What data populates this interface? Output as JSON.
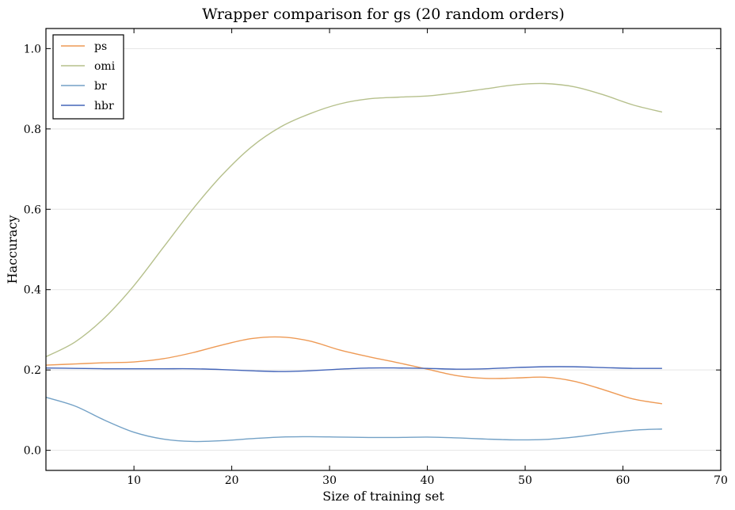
{
  "chart_data": {
    "type": "line",
    "title": "Wrapper comparison for gs (20 random orders)",
    "xlabel": "Size of training set",
    "ylabel": "Haccuracy",
    "xlim": [
      1,
      70
    ],
    "ylim": [
      -0.05,
      1.05
    ],
    "xticks": [
      10,
      20,
      30,
      40,
      50,
      60,
      70
    ],
    "yticks": [
      0.0,
      0.2,
      0.4,
      0.6,
      0.8,
      1.0
    ],
    "xtick_labels": [
      "10",
      "20",
      "30",
      "40",
      "50",
      "60",
      "70"
    ],
    "ytick_labels": [
      "0.0",
      "0.2",
      "0.4",
      "0.6",
      "0.8",
      "1.0"
    ],
    "grid": "horizontal",
    "legend_position": "top-left",
    "x": [
      1,
      4,
      7,
      10,
      13,
      16,
      19,
      22,
      25,
      28,
      31,
      34,
      37,
      40,
      43,
      46,
      49,
      52,
      55,
      58,
      61,
      64
    ],
    "series": [
      {
        "name": "ps",
        "color": "#ee9a55",
        "values": [
          0.212,
          0.215,
          0.218,
          0.22,
          0.228,
          0.243,
          0.262,
          0.278,
          0.282,
          0.272,
          0.25,
          0.233,
          0.218,
          0.202,
          0.186,
          0.179,
          0.18,
          0.182,
          0.172,
          0.151,
          0.128,
          0.116
        ]
      },
      {
        "name": "omi",
        "color": "#b6c08c",
        "values": [
          0.233,
          0.27,
          0.33,
          0.41,
          0.505,
          0.6,
          0.685,
          0.755,
          0.805,
          0.838,
          0.862,
          0.875,
          0.879,
          0.882,
          0.89,
          0.9,
          0.91,
          0.913,
          0.905,
          0.885,
          0.86,
          0.842
        ]
      },
      {
        "name": "br",
        "color": "#73a1c6",
        "values": [
          0.132,
          0.11,
          0.075,
          0.045,
          0.028,
          0.022,
          0.024,
          0.029,
          0.033,
          0.034,
          0.033,
          0.032,
          0.032,
          0.033,
          0.031,
          0.028,
          0.026,
          0.027,
          0.033,
          0.042,
          0.05,
          0.053
        ]
      },
      {
        "name": "hbr",
        "color": "#4566b9",
        "values": [
          0.205,
          0.204,
          0.203,
          0.203,
          0.203,
          0.203,
          0.201,
          0.198,
          0.196,
          0.198,
          0.202,
          0.205,
          0.205,
          0.204,
          0.202,
          0.203,
          0.206,
          0.208,
          0.208,
          0.206,
          0.204,
          0.204
        ]
      }
    ]
  }
}
